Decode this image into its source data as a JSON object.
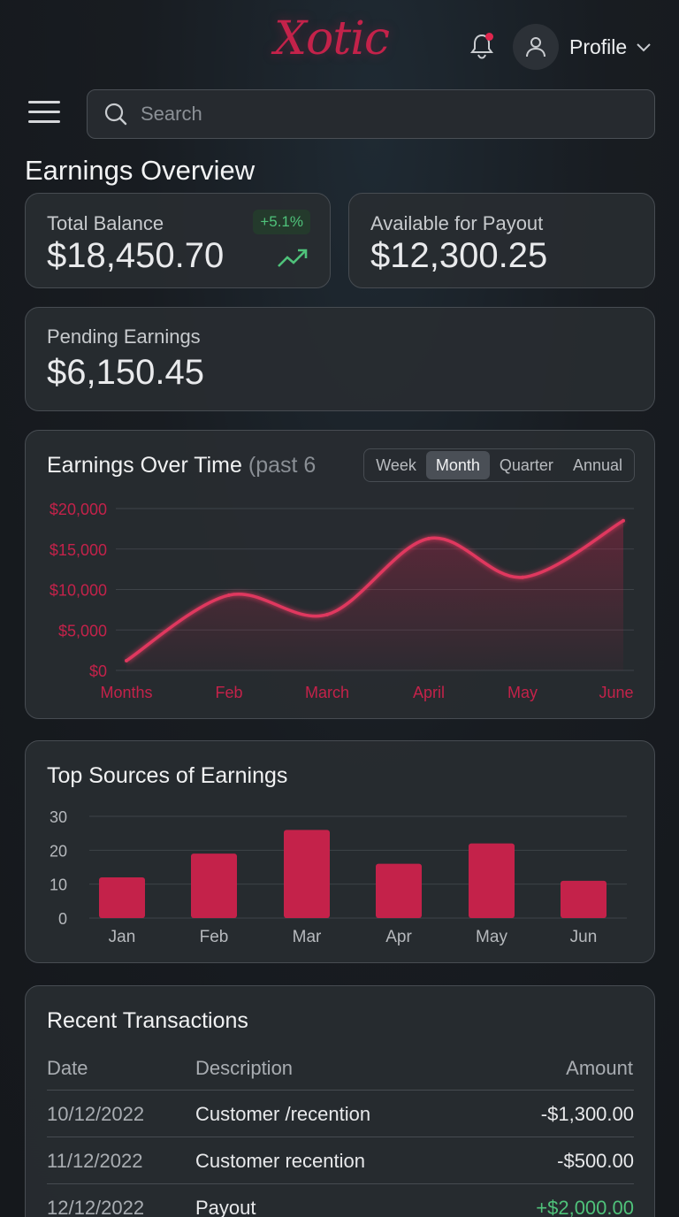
{
  "app": {
    "logo": "Xotic"
  },
  "header": {
    "profile_label": "Profile",
    "notification_dot_color": "#e0264e"
  },
  "search": {
    "placeholder": "Search"
  },
  "page": {
    "title": "Earnings Overview"
  },
  "stats": {
    "total_balance": {
      "label": "Total Balance",
      "value": "$18,450.70",
      "change": "+5.1%"
    },
    "available": {
      "label": "Available for Payout",
      "value": "$12,300.25"
    },
    "pending": {
      "label": "Pending Earnings",
      "value": "$6,150.45"
    }
  },
  "earnings_chart": {
    "title": "Earnings Over Time",
    "title_suffix": "(past 6",
    "periods": [
      "Week",
      "Month",
      "Quarter",
      "Annual"
    ],
    "active_period": "Month"
  },
  "sources_chart": {
    "title": "Top Sources of Earnings"
  },
  "transactions": {
    "title": "Recent Transactions",
    "columns": {
      "date": "Date",
      "description": "Description",
      "amount": "Amount"
    },
    "rows": [
      {
        "date": "10/12/2022",
        "description": "Customer /recention",
        "amount": "-$1,300.00",
        "positive": false
      },
      {
        "date": "11/12/2022",
        "description": "Customer recention",
        "amount": "-$500.00",
        "positive": false
      },
      {
        "date": "12/12/2022",
        "description": "Payout",
        "amount": "+$2,000.00",
        "positive": true
      }
    ]
  },
  "colors": {
    "accent": "#c4224a",
    "positive": "#4fc27a",
    "background": "#181c21",
    "card": "#282c31"
  },
  "icons": [
    "bell-icon",
    "user-icon",
    "chevron-down-icon",
    "menu-icon",
    "search-icon",
    "trend-up-icon"
  ],
  "chart_data": [
    {
      "type": "area",
      "title": "Earnings Over Time (past 6",
      "categories": [
        "Months",
        "Feb",
        "March",
        "April",
        "May",
        "June"
      ],
      "y_tick_labels": [
        "$20,000",
        "$15,000",
        "$10,000",
        "$5,000",
        "$0"
      ],
      "values": [
        1200,
        9300,
        6900,
        16300,
        11500,
        18500
      ],
      "ylim": [
        0,
        20000
      ],
      "grid": true,
      "color": "#c4224a"
    },
    {
      "type": "bar",
      "title": "Top Sources of Earnings",
      "categories": [
        "Jan",
        "Feb",
        "Mar",
        "Apr",
        "May",
        "Jun"
      ],
      "y_ticks": [
        0,
        10,
        20,
        30
      ],
      "values": [
        12,
        19,
        26,
        16,
        22,
        11
      ],
      "ylim": [
        0,
        30
      ],
      "grid": true,
      "color": "#c4224a"
    }
  ]
}
